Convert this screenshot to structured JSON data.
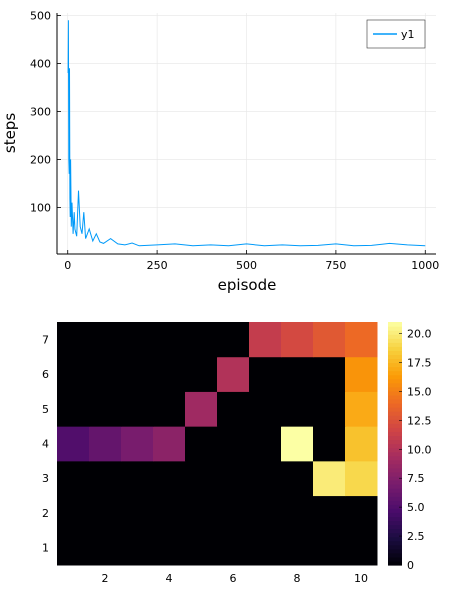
{
  "chart_data": [
    {
      "type": "line",
      "xlabel": "episode",
      "ylabel": "steps",
      "xlim": [
        -30,
        1030
      ],
      "ylim": [
        3,
        505
      ],
      "xticks": [
        0,
        250,
        500,
        750,
        1000
      ],
      "yticks": [
        100,
        200,
        300,
        400,
        500
      ],
      "grid": true,
      "legend": "top-right",
      "series": [
        {
          "name": "y1",
          "color": "#009af9",
          "note_profile": "steps per episode; dense spiky series",
          "x": [
            1,
            2,
            3,
            4,
            5,
            6,
            7,
            8,
            10,
            12,
            15,
            18,
            20,
            25,
            30,
            35,
            40,
            45,
            50,
            60,
            70,
            80,
            90,
            100,
            120,
            140,
            160,
            180,
            200,
            250,
            300,
            350,
            400,
            450,
            500,
            550,
            600,
            650,
            700,
            750,
            800,
            850,
            900,
            950,
            1000
          ],
          "values": [
            380,
            490,
            200,
            170,
            390,
            120,
            80,
            200,
            60,
            110,
            45,
            90,
            55,
            40,
            135,
            60,
            45,
            90,
            35,
            55,
            30,
            45,
            28,
            25,
            35,
            24,
            22,
            26,
            20,
            22,
            24,
            20,
            22,
            20,
            24,
            20,
            22,
            20,
            21,
            24,
            20,
            21,
            25,
            22,
            20
          ]
        }
      ]
    },
    {
      "type": "heatmap",
      "xticks": [
        2,
        4,
        6,
        8,
        10
      ],
      "yticks": [
        1,
        2,
        3,
        4,
        5,
        6,
        7
      ],
      "colorbar_ticks": [
        "0",
        "2.5",
        "5.0",
        "7.5",
        "10.0",
        "12.5",
        "15.0",
        "17.5",
        "20.0"
      ],
      "clim": [
        0,
        21
      ],
      "colormap": "inferno",
      "rows": [
        [
          0,
          0,
          0,
          0,
          0,
          0,
          0,
          0,
          0,
          0
        ],
        [
          0,
          0,
          0,
          0,
          0,
          0,
          0,
          0,
          0,
          0
        ],
        [
          0,
          0,
          0,
          0,
          0,
          0,
          0,
          0,
          20,
          19
        ],
        [
          5,
          6,
          7,
          8,
          0,
          0,
          0,
          21,
          0,
          18
        ],
        [
          0,
          0,
          0,
          0,
          9,
          0,
          0,
          0,
          0,
          17
        ],
        [
          0,
          0,
          0,
          0,
          0,
          10,
          0,
          0,
          0,
          16
        ],
        [
          0,
          0,
          0,
          0,
          0,
          0,
          11,
          12,
          13,
          14
        ]
      ]
    }
  ]
}
